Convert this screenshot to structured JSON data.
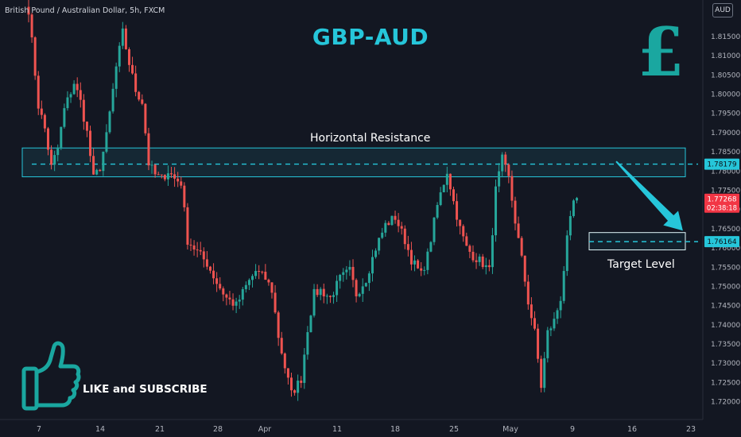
{
  "symbol_label": "British Pound / Australian Dollar, 5h, FXCM",
  "currency_button": "AUD",
  "pound_glyph": "£",
  "call_to_action": "LIKE and SUBSCRIBE",
  "colors": {
    "up": "#26a69a",
    "down": "#ef5350",
    "accent": "#26c6da",
    "background": "#131722"
  },
  "chart_data": {
    "type": "candlestick",
    "title": "GBP-AUD",
    "ylim": [
      1.716,
      1.822
    ],
    "y_ticks": [
      1.72,
      1.725,
      1.73,
      1.735,
      1.74,
      1.745,
      1.75,
      1.755,
      1.76,
      1.765,
      1.77,
      1.775,
      1.78,
      1.785,
      1.79,
      1.795,
      1.8,
      1.805,
      1.81,
      1.815
    ],
    "x_ticks": [
      "7",
      "14",
      "21",
      "28",
      "Apr",
      "11",
      "18",
      "25",
      "May",
      "9",
      "16",
      "23"
    ],
    "close_anchors": [
      [
        0,
        1.822
      ],
      [
        3,
        1.797
      ],
      [
        5,
        1.791
      ],
      [
        7,
        1.781
      ],
      [
        9,
        1.786
      ],
      [
        11,
        1.796
      ],
      [
        14,
        1.803
      ],
      [
        16,
        1.798
      ],
      [
        18,
        1.79
      ],
      [
        20,
        1.778
      ],
      [
        22,
        1.781
      ],
      [
        24,
        1.789
      ],
      [
        27,
        1.807
      ],
      [
        29,
        1.816
      ],
      [
        31,
        1.808
      ],
      [
        33,
        1.801
      ],
      [
        35,
        1.798
      ],
      [
        37,
        1.782
      ],
      [
        39,
        1.779
      ],
      [
        41,
        1.778
      ],
      [
        43,
        1.78
      ],
      [
        45,
        1.778
      ],
      [
        47,
        1.777
      ],
      [
        49,
        1.762
      ],
      [
        52,
        1.759
      ],
      [
        55,
        1.756
      ],
      [
        58,
        1.751
      ],
      [
        61,
        1.747
      ],
      [
        64,
        1.745
      ],
      [
        67,
        1.75
      ],
      [
        70,
        1.754
      ],
      [
        73,
        1.752
      ],
      [
        75,
        1.749
      ],
      [
        77,
        1.737
      ],
      [
        79,
        1.729
      ],
      [
        81,
        1.722
      ],
      [
        84,
        1.726
      ],
      [
        86,
        1.739
      ],
      [
        88,
        1.748
      ],
      [
        90,
        1.749
      ],
      [
        93,
        1.747
      ],
      [
        96,
        1.752
      ],
      [
        99,
        1.754
      ],
      [
        101,
        1.748
      ],
      [
        104,
        1.752
      ],
      [
        107,
        1.76
      ],
      [
        110,
        1.766
      ],
      [
        113,
        1.768
      ],
      [
        116,
        1.762
      ],
      [
        118,
        1.757
      ],
      [
        121,
        1.753
      ],
      [
        123,
        1.758
      ],
      [
        126,
        1.771
      ],
      [
        129,
        1.78
      ],
      [
        131,
        1.772
      ],
      [
        133,
        1.765
      ],
      [
        135,
        1.76
      ],
      [
        137,
        1.758
      ],
      [
        140,
        1.756
      ],
      [
        142,
        1.754
      ],
      [
        144,
        1.775
      ],
      [
        146,
        1.783
      ],
      [
        148,
        1.778
      ],
      [
        150,
        1.767
      ],
      [
        152,
        1.757
      ],
      [
        154,
        1.746
      ],
      [
        156,
        1.738
      ],
      [
        158,
        1.724
      ],
      [
        160,
        1.738
      ],
      [
        162,
        1.741
      ],
      [
        164,
        1.747
      ],
      [
        166,
        1.762
      ],
      [
        168,
        1.772
      ],
      [
        169,
        1.773
      ]
    ],
    "resistance_zone": {
      "low": 1.7785,
      "high": 1.786,
      "label": "Horizontal Resistance"
    },
    "target_zone": {
      "low": 1.7595,
      "high": 1.764,
      "label": "Target Level"
    },
    "levels": [
      {
        "value": 1.78179,
        "label": "1.78179"
      },
      {
        "value": 1.76164,
        "label": "1.76164"
      }
    ],
    "current_price": {
      "value": 1.77268,
      "label": "1.77268",
      "countdown": "02:38:18"
    },
    "arrow": {
      "from": {
        "candle": 163,
        "price": 1.7825
      },
      "to": {
        "candle": 186,
        "price": 1.7645
      }
    }
  }
}
